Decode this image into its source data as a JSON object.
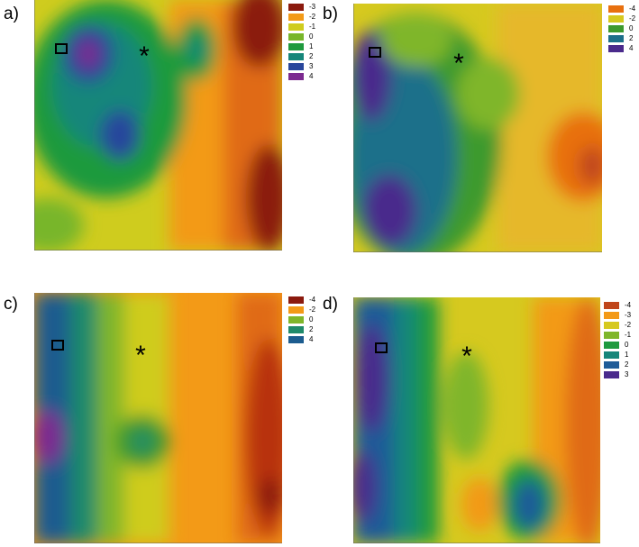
{
  "panels": [
    {
      "label": "a)",
      "legend": [
        {
          "value": "-3",
          "color": "#8b1a0e"
        },
        {
          "value": "-2",
          "color": "#f39a17"
        },
        {
          "value": "-1",
          "color": "#cfcc1e"
        },
        {
          "value": "0",
          "color": "#78b62a"
        },
        {
          "value": "1",
          "color": "#1f9a3e"
        },
        {
          "value": "2",
          "color": "#16867a"
        },
        {
          "value": "3",
          "color": "#28469c"
        },
        {
          "value": "4",
          "color": "#7b2a90"
        }
      ],
      "marker_square": "□",
      "marker_star": "*"
    },
    {
      "label": "b)",
      "legend": [
        {
          "value": "-4",
          "color": "#e8700f"
        },
        {
          "value": "-2",
          "color": "#d6c91f"
        },
        {
          "value": "0",
          "color": "#3d9a2e"
        },
        {
          "value": "2",
          "color": "#1d6f8a"
        },
        {
          "value": "4",
          "color": "#4a2a8c"
        }
      ],
      "marker_square": "□",
      "marker_star": "*"
    },
    {
      "label": "c)",
      "legend": [
        {
          "value": "-4",
          "color": "#8b1a0e"
        },
        {
          "value": "-2",
          "color": "#f39a17"
        },
        {
          "value": "0",
          "color": "#7fb62a"
        },
        {
          "value": "2",
          "color": "#1f8a6a"
        },
        {
          "value": "4",
          "color": "#1c5c8f"
        }
      ],
      "marker_square": "□",
      "marker_star": "*"
    },
    {
      "label": "d)",
      "legend": [
        {
          "value": "-4",
          "color": "#c0461a"
        },
        {
          "value": "-3",
          "color": "#f39a17"
        },
        {
          "value": "-2",
          "color": "#d6c91f"
        },
        {
          "value": "-1",
          "color": "#7fb62a"
        },
        {
          "value": "0",
          "color": "#1f9a3e"
        },
        {
          "value": "1",
          "color": "#16867a"
        },
        {
          "value": "2",
          "color": "#1f5c98"
        },
        {
          "value": "3",
          "color": "#4a2a8c"
        }
      ],
      "marker_square": "□",
      "marker_star": "*"
    }
  ]
}
